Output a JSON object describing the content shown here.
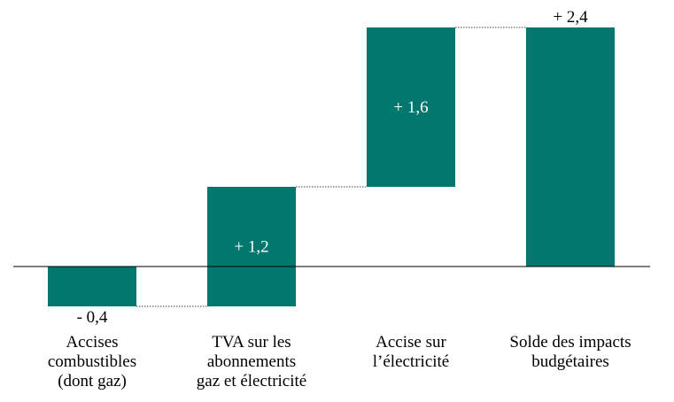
{
  "chart_data": {
    "type": "waterfall",
    "title": "",
    "xlabel": "",
    "ylabel": "",
    "bar_color": "#02776e",
    "grid": false,
    "legend": "none",
    "ylim": [
      -0.4,
      2.4
    ],
    "categories": [
      [
        "Accises",
        "combustibles",
        "(dont gaz)"
      ],
      [
        "TVA sur les",
        "abonnements",
        "gaz et électricité"
      ],
      [
        "Accise sur",
        "l’électricité"
      ],
      [
        "Solde des impacts",
        "budgétaires"
      ]
    ],
    "values": [
      -0.4,
      1.2,
      1.6,
      2.4
    ],
    "is_total": [
      false,
      false,
      false,
      true
    ],
    "value_labels": [
      "- 0,4",
      "+ 1,2",
      "+ 1,6",
      "+ 2,4"
    ],
    "value_label_position": [
      "below",
      "inside",
      "inside",
      "above"
    ]
  }
}
